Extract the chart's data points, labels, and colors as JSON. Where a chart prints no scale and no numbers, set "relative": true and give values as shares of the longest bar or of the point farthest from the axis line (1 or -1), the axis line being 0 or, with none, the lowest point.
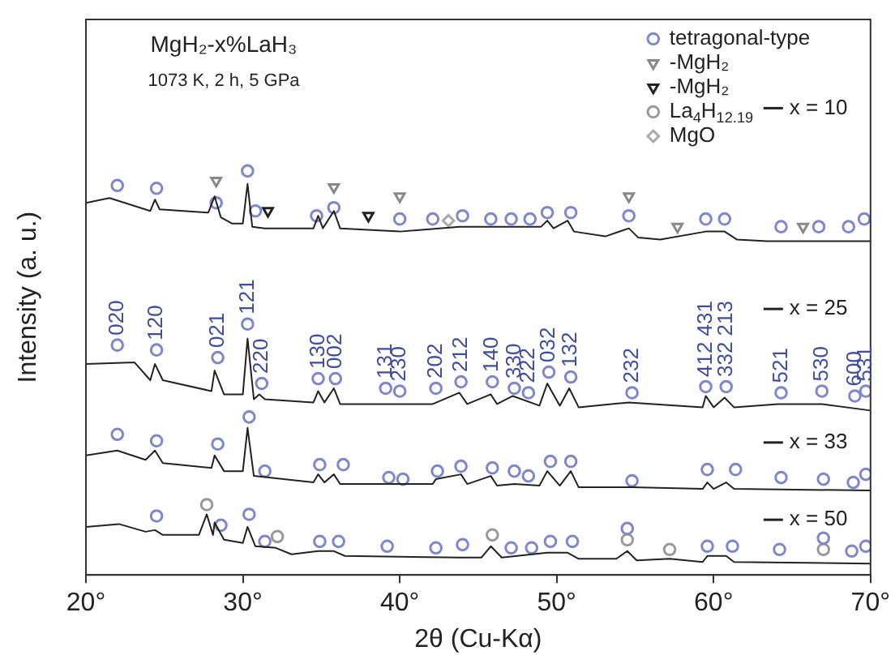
{
  "chart_data": {
    "type": "line",
    "title": "MgH₂-x%LaH₃",
    "subtitle": "1073 K, 2 h, 5 GPa",
    "xlabel": "2θ (Cu-Kα)",
    "ylabel": "Intensity (a. u.)",
    "relative": true,
    "grid": false,
    "legend": "top right",
    "xlim": [
      20,
      70
    ],
    "xticks": [
      {
        "value": 20,
        "label": "20°"
      },
      {
        "value": 30,
        "label": "30°"
      },
      {
        "value": 40,
        "label": "40°"
      },
      {
        "value": 50,
        "label": "50°"
      },
      {
        "value": 60,
        "label": "60°"
      },
      {
        "value": 70,
        "label": "70°"
      }
    ],
    "series": [
      {
        "name": "x = 10",
        "color": "#222222",
        "x": [
          20,
          21.5,
          24.1,
          24.4,
          24.7,
          27.8,
          28.2,
          28.6,
          29.3,
          30.0,
          30.3,
          30.6,
          31.4,
          34.5,
          34.8,
          35.1,
          35.8,
          36.2,
          40.0,
          43.8,
          45.8,
          49.0,
          49.4,
          49.8,
          50.7,
          51.1,
          53.1,
          54.6,
          55.2,
          56.6,
          59.5,
          60.7,
          61.5,
          63.4,
          70
        ],
        "values": [
          0.921,
          0.933,
          0.901,
          0.929,
          0.905,
          0.897,
          0.937,
          0.885,
          0.87,
          0.87,
          0.968,
          0.862,
          0.858,
          0.858,
          0.889,
          0.858,
          0.901,
          0.858,
          0.85,
          0.862,
          0.862,
          0.862,
          0.877,
          0.858,
          0.877,
          0.85,
          0.838,
          0.858,
          0.835,
          0.83,
          0.85,
          0.85,
          0.83,
          0.826,
          0.826
        ]
      },
      {
        "name": "x = 25",
        "color": "#222222",
        "x": [
          20,
          23.1,
          24.1,
          24.4,
          24.9,
          28.0,
          28.2,
          28.8,
          30.0,
          30.3,
          30.7,
          31.05,
          31.4,
          34.5,
          34.8,
          35.2,
          35.8,
          36.2,
          42.1,
          43.8,
          44.3,
          45.8,
          46.2,
          47.2,
          48.9,
          49.4,
          50.2,
          50.8,
          51.4,
          54.6,
          59.3,
          59.5,
          60.0,
          60.7,
          61.3,
          64.1,
          66.9,
          70
        ],
        "values": [
          0.522,
          0.526,
          0.482,
          0.522,
          0.482,
          0.455,
          0.506,
          0.447,
          0.447,
          0.585,
          0.435,
          0.447,
          0.435,
          0.427,
          0.455,
          0.427,
          0.462,
          0.423,
          0.423,
          0.451,
          0.423,
          0.447,
          0.423,
          0.443,
          0.419,
          0.474,
          0.419,
          0.462,
          0.415,
          0.427,
          0.415,
          0.443,
          0.415,
          0.439,
          0.415,
          0.423,
          0.423,
          0.407
        ]
      },
      {
        "name": "x = 33",
        "color": "#222222",
        "x": [
          20,
          22.0,
          23.8,
          24.4,
          24.9,
          28.0,
          28.2,
          28.8,
          30.0,
          30.3,
          30.7,
          34.5,
          34.8,
          35.2,
          35.8,
          36.2,
          42.1,
          42.3,
          43.9,
          44.3,
          45.8,
          46.2,
          47.3,
          48.9,
          49.4,
          50.2,
          50.9,
          51.4,
          54.8,
          59.3,
          59.6,
          60.0,
          60.8,
          61.3,
          70
        ],
        "values": [
          0.296,
          0.308,
          0.285,
          0.308,
          0.277,
          0.265,
          0.296,
          0.257,
          0.257,
          0.364,
          0.245,
          0.229,
          0.249,
          0.229,
          0.249,
          0.225,
          0.225,
          0.237,
          0.249,
          0.225,
          0.245,
          0.221,
          0.225,
          0.221,
          0.257,
          0.221,
          0.257,
          0.217,
          0.217,
          0.213,
          0.229,
          0.213,
          0.229,
          0.213,
          0.209
        ]
      },
      {
        "name": "x = 50",
        "color": "#222222",
        "x": [
          20,
          22.1,
          23.8,
          24.4,
          24.9,
          27.2,
          27.7,
          28.1,
          28.2,
          28.8,
          30.0,
          30.3,
          30.8,
          32.1,
          33.1,
          34.8,
          35.8,
          36.5,
          43.8,
          45.2,
          45.8,
          46.5,
          49.4,
          50.7,
          51.4,
          53.8,
          54.5,
          55.1,
          57.2,
          59.3,
          59.6,
          60.8,
          61.3,
          70
        ],
        "values": [
          0.119,
          0.126,
          0.107,
          0.111,
          0.099,
          0.099,
          0.15,
          0.099,
          0.13,
          0.087,
          0.079,
          0.119,
          0.071,
          0.067,
          0.051,
          0.059,
          0.059,
          0.047,
          0.043,
          0.043,
          0.071,
          0.043,
          0.055,
          0.055,
          0.04,
          0.04,
          0.059,
          0.036,
          0.04,
          0.032,
          0.047,
          0.047,
          0.032,
          0.028
        ]
      },
      {
        "type": "scatter",
        "name": "tetragonal-type",
        "marker": "circle",
        "color": "#7f86c9",
        "x": [
          22.0,
          24.5,
          28.3,
          30.3,
          30.8,
          34.7,
          35.8,
          40.0,
          42.1,
          44.0,
          45.8,
          47.1,
          48.3,
          49.4,
          50.9,
          54.6,
          59.5,
          60.7,
          64.3,
          66.7,
          68.6,
          69.6,
          22.0,
          24.5,
          28.4,
          30.3,
          31.2,
          34.8,
          35.9,
          39.1,
          40.0,
          42.3,
          43.9,
          45.9,
          47.3,
          48.2,
          49.5,
          50.9,
          54.8,
          59.5,
          60.8,
          64.3,
          66.9,
          69.0,
          69.7,
          22.0,
          24.5,
          28.4,
          30.4,
          31.4,
          34.9,
          36.4,
          39.3,
          40.2,
          42.4,
          43.9,
          45.9,
          47.3,
          48.2,
          49.6,
          50.9,
          54.8,
          59.6,
          61.4,
          64.3,
          67.0,
          68.9,
          69.7,
          24.5,
          28.6,
          30.4,
          31.4,
          34.9,
          36.1,
          39.2,
          42.3,
          44.0,
          47.1,
          48.4,
          49.6,
          51.0,
          54.5,
          59.6,
          61.2,
          64.2,
          67.0,
          68.8,
          69.7
        ],
        "values": [
          0.964,
          0.957,
          0.921,
          1.0,
          0.901,
          0.889,
          0.909,
          0.881,
          0.881,
          0.889,
          0.881,
          0.881,
          0.881,
          0.897,
          0.897,
          0.889,
          0.881,
          0.881,
          0.862,
          0.862,
          0.862,
          0.881,
          0.569,
          0.557,
          0.538,
          0.621,
          0.474,
          0.486,
          0.486,
          0.462,
          0.455,
          0.462,
          0.478,
          0.478,
          0.462,
          0.451,
          0.502,
          0.49,
          0.451,
          0.466,
          0.466,
          0.451,
          0.455,
          0.443,
          0.455,
          0.348,
          0.332,
          0.324,
          0.391,
          0.257,
          0.273,
          0.273,
          0.241,
          0.237,
          0.257,
          0.269,
          0.265,
          0.257,
          0.245,
          0.281,
          0.281,
          0.233,
          0.261,
          0.261,
          0.241,
          0.237,
          0.229,
          0.249,
          0.146,
          0.123,
          0.15,
          0.083,
          0.083,
          0.083,
          0.071,
          0.067,
          0.075,
          0.067,
          0.067,
          0.083,
          0.083,
          0.115,
          0.071,
          0.071,
          0.063,
          0.091,
          0.059,
          0.071
        ]
      },
      {
        "type": "scatter",
        "name": "-MgH₂",
        "marker": "triangle",
        "color": "#888888",
        "x": [
          28.3,
          35.8,
          40.0,
          54.6,
          57.7,
          65.7
        ],
        "values": [
          0.976,
          0.96,
          0.937,
          0.937,
          0.862,
          0.862
        ]
      },
      {
        "type": "scatter",
        "name": "-MgH₂",
        "marker": "triangle",
        "color": "#222222",
        "x": [
          31.6,
          38.0
        ],
        "values": [
          0.901,
          0.889
        ]
      },
      {
        "type": "scatter",
        "name": "La$_{4}$H$_{12.19}$",
        "marker": "circle",
        "color": "#999999",
        "x": [
          27.7,
          32.2,
          45.9,
          54.5,
          57.2,
          67.0
        ],
        "values": [
          0.174,
          0.095,
          0.099,
          0.087,
          0.063,
          0.063
        ]
      },
      {
        "type": "scatter",
        "name": "MgO",
        "marker": "diamond",
        "color": "#aaaaaa",
        "x": [
          43.1
        ],
        "values": [
          0.877
        ]
      }
    ],
    "annotations": [
      {
        "text": "020",
        "x": 22.0,
        "y": 0.569
      },
      {
        "text": "120",
        "x": 24.5,
        "y": 0.557
      },
      {
        "text": "021",
        "x": 28.4,
        "y": 0.538
      },
      {
        "text": "121",
        "x": 30.3,
        "y": 0.621
      },
      {
        "text": "220",
        "x": 31.2,
        "y": 0.474
      },
      {
        "text": "130",
        "x": 34.8,
        "y": 0.486
      },
      {
        "text": "002",
        "x": 35.9,
        "y": 0.486
      },
      {
        "text": "131",
        "x": 39.1,
        "y": 0.462
      },
      {
        "text": "230",
        "x": 40.0,
        "y": 0.455
      },
      {
        "text": "202",
        "x": 42.3,
        "y": 0.462
      },
      {
        "text": "212",
        "x": 43.9,
        "y": 0.478
      },
      {
        "text": "140",
        "x": 45.9,
        "y": 0.478
      },
      {
        "text": "330",
        "x": 47.3,
        "y": 0.462
      },
      {
        "text": "222",
        "x": 48.2,
        "y": 0.451
      },
      {
        "text": "032",
        "x": 49.5,
        "y": 0.502
      },
      {
        "text": "132",
        "x": 50.9,
        "y": 0.49
      },
      {
        "text": "232",
        "x": 54.8,
        "y": 0.451
      },
      {
        "text": "412 431",
        "x": 59.5,
        "y": 0.466
      },
      {
        "text": "332 213",
        "x": 60.8,
        "y": 0.466
      },
      {
        "text": "521",
        "x": 64.3,
        "y": 0.451
      },
      {
        "text": "530",
        "x": 66.9,
        "y": 0.455
      },
      {
        "text": "600",
        "x": 69.0,
        "y": 0.443
      },
      {
        "text": "531",
        "x": 69.7,
        "y": 0.455
      }
    ]
  }
}
